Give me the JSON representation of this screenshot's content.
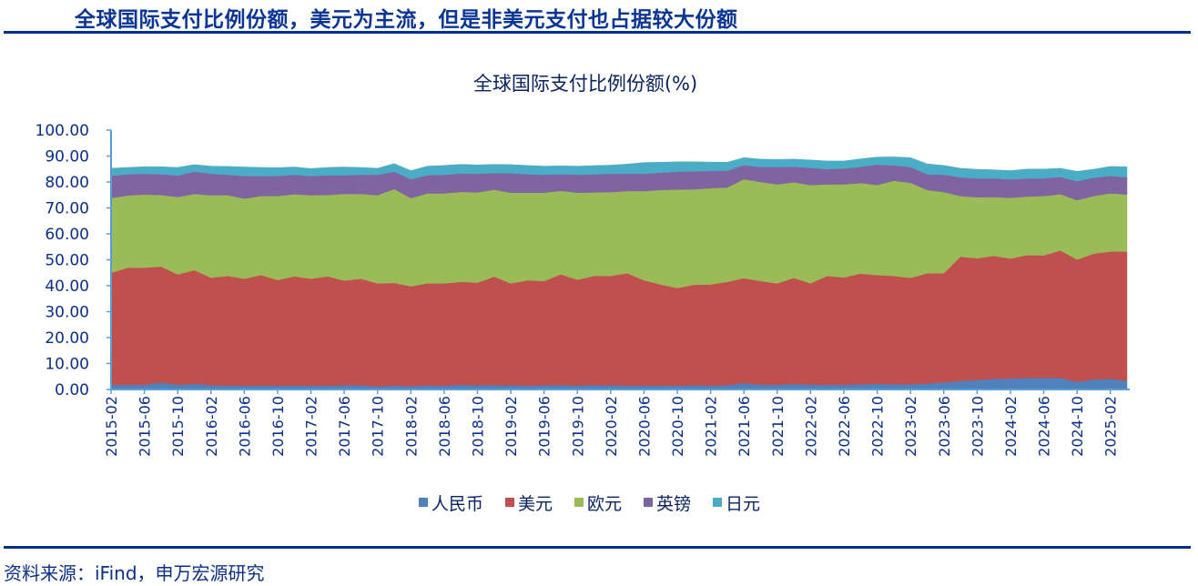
{
  "header": {
    "title": "全球国际支付比例份额，美元为主流，但是非美元支付也占据较大份额"
  },
  "footer": {
    "source": "资料来源：iFind，申万宏源研究"
  },
  "chart_data": {
    "type": "area",
    "stacked": true,
    "title": "全球国际支付比例份额(%)",
    "xlabel": "",
    "ylabel": "",
    "ylim": [
      0,
      100
    ],
    "yticks": [
      "0.00",
      "10.00",
      "20.00",
      "30.00",
      "40.00",
      "50.00",
      "60.00",
      "70.00",
      "80.00",
      "90.00",
      "100.00"
    ],
    "grid": false,
    "legend": "bottom",
    "categories": [
      "2015-02",
      "2015-04",
      "2015-06",
      "2015-08",
      "2015-10",
      "2015-12",
      "2016-02",
      "2016-04",
      "2016-06",
      "2016-08",
      "2016-10",
      "2016-12",
      "2017-02",
      "2017-04",
      "2017-06",
      "2017-08",
      "2017-10",
      "2017-12",
      "2018-02",
      "2018-04",
      "2018-06",
      "2018-08",
      "2018-10",
      "2018-12",
      "2019-02",
      "2019-04",
      "2019-06",
      "2019-08",
      "2019-10",
      "2019-12",
      "2020-02",
      "2020-04",
      "2020-06",
      "2020-08",
      "2020-10",
      "2020-12",
      "2021-02",
      "2021-04",
      "2021-06",
      "2021-08",
      "2021-10",
      "2021-12",
      "2022-02",
      "2022-04",
      "2022-06",
      "2022-08",
      "2022-10",
      "2022-12",
      "2023-02",
      "2023-04",
      "2023-06",
      "2023-08",
      "2023-10",
      "2023-12",
      "2024-02",
      "2024-04",
      "2024-06",
      "2024-08",
      "2024-10",
      "2024-12",
      "2025-02",
      "2025-04"
    ],
    "series": [
      {
        "name": "人民币",
        "color": "#4f81bd",
        "values": [
          1.8,
          1.8,
          1.8,
          2.7,
          1.8,
          2.2,
          1.6,
          1.5,
          1.5,
          1.5,
          1.5,
          1.5,
          1.5,
          1.5,
          1.6,
          1.6,
          1.2,
          1.5,
          1.3,
          1.5,
          1.5,
          1.8,
          1.6,
          1.7,
          1.6,
          1.5,
          1.6,
          1.7,
          1.5,
          1.7,
          1.6,
          1.5,
          1.5,
          1.5,
          1.5,
          1.6,
          1.5,
          1.6,
          2.5,
          1.8,
          1.8,
          2.1,
          1.9,
          1.8,
          1.8,
          2.0,
          2.2,
          2.0,
          2.0,
          2.3,
          2.7,
          3.3,
          3.6,
          4.1,
          4.2,
          4.5,
          4.5,
          4.5,
          2.9,
          3.9,
          4.1,
          3.3
        ]
      },
      {
        "name": "美元",
        "color": "#c0504d",
        "values": [
          43.2,
          45.2,
          45.2,
          44.7,
          42.6,
          43.8,
          41.5,
          42.3,
          41.2,
          42.6,
          40.7,
          42.1,
          41.2,
          42.1,
          40.4,
          41.1,
          39.7,
          39.6,
          38.5,
          39.4,
          39.4,
          39.7,
          39.6,
          41.8,
          39.3,
          40.6,
          40.2,
          42.7,
          40.8,
          42.1,
          42.2,
          43.3,
          40.6,
          39.0,
          37.6,
          38.8,
          39.0,
          39.9,
          40.4,
          40.0,
          39.1,
          40.9,
          39.0,
          42.0,
          41.4,
          42.7,
          41.9,
          41.8,
          41.0,
          42.5,
          42.1,
          47.9,
          47.0,
          47.4,
          46.3,
          47.3,
          47.2,
          49.1,
          47.2,
          48.5,
          49.1,
          49.9
        ]
      },
      {
        "name": "欧元",
        "color": "#9bbb59",
        "values": [
          28.8,
          27.8,
          28.2,
          27.6,
          29.8,
          29.4,
          31.8,
          31.1,
          30.9,
          30.5,
          32.4,
          31.7,
          32.2,
          31.4,
          33.4,
          32.7,
          34.0,
          36.2,
          34.0,
          34.7,
          34.7,
          34.7,
          34.8,
          33.5,
          35.0,
          33.8,
          34.1,
          32.2,
          33.6,
          32.2,
          32.3,
          31.7,
          34.4,
          36.4,
          38.0,
          36.8,
          37.1,
          36.4,
          38.2,
          38.2,
          38.2,
          36.9,
          37.9,
          35.3,
          35.9,
          34.9,
          34.7,
          36.7,
          36.7,
          32.1,
          31.3,
          23.4,
          23.5,
          22.7,
          23.4,
          22.6,
          22.9,
          21.7,
          22.9,
          22.2,
          22.4,
          22.0
        ]
      },
      {
        "name": "英镑",
        "color": "#8064a2",
        "values": [
          8.6,
          8.2,
          8.0,
          8.0,
          8.3,
          8.6,
          8.3,
          7.9,
          8.7,
          7.7,
          7.7,
          7.5,
          7.4,
          7.6,
          7.2,
          7.4,
          7.9,
          6.7,
          7.3,
          7.0,
          7.2,
          7.1,
          7.2,
          6.4,
          7.5,
          7.1,
          6.9,
          6.4,
          6.9,
          7.0,
          7.1,
          6.7,
          6.7,
          6.7,
          6.9,
          6.9,
          6.7,
          6.5,
          5.4,
          5.8,
          6.7,
          6.0,
          6.7,
          5.9,
          6.1,
          6.3,
          7.9,
          5.9,
          6.1,
          6.1,
          6.7,
          7.2,
          7.3,
          7.2,
          7.1,
          7.0,
          6.8,
          6.7,
          7.3,
          7.1,
          6.8,
          6.6
        ]
      },
      {
        "name": "日元",
        "color": "#4bacc6",
        "values": [
          2.9,
          2.6,
          2.7,
          2.9,
          3.1,
          2.7,
          2.9,
          3.2,
          3.5,
          3.3,
          3.2,
          3.0,
          2.9,
          3.0,
          3.2,
          2.8,
          2.5,
          3.1,
          3.3,
          3.5,
          3.6,
          3.5,
          3.4,
          3.4,
          3.3,
          3.4,
          3.3,
          3.2,
          3.3,
          3.3,
          3.3,
          3.7,
          4.3,
          4.0,
          3.8,
          3.7,
          3.4,
          3.2,
          2.9,
          3.0,
          2.9,
          2.9,
          3.0,
          3.1,
          2.9,
          3.0,
          2.9,
          3.3,
          3.6,
          4.0,
          3.6,
          3.5,
          3.5,
          3.3,
          3.4,
          3.6,
          3.6,
          3.3,
          3.8,
          3.2,
          3.6,
          4.1
        ]
      }
    ],
    "axis_color": "#5b9bd5"
  }
}
